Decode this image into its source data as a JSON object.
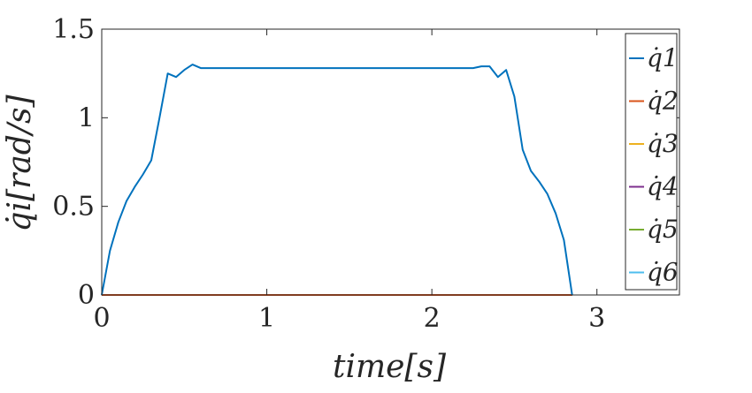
{
  "chart_data": {
    "type": "line",
    "title": "",
    "xlabel": "time[s]",
    "ylabel": "q̇i[rad/s]",
    "xlim": [
      0,
      3.5
    ],
    "ylim": [
      0,
      1.5
    ],
    "xticks": [
      0,
      1,
      2,
      3
    ],
    "yticks": [
      0,
      0.5,
      1,
      1.5
    ],
    "xtick_labels": [
      "0",
      "1",
      "2",
      "3"
    ],
    "ytick_labels": [
      "0",
      "0.5",
      "1",
      "1.5"
    ],
    "grid": false,
    "legend_position": "right",
    "series": [
      {
        "name": "q̇1",
        "color": "#0072BD",
        "x": [
          0,
          0.05,
          0.1,
          0.15,
          0.2,
          0.25,
          0.3,
          0.35,
          0.4,
          0.45,
          0.5,
          0.55,
          0.6,
          1.0,
          1.5,
          2.0,
          2.25,
          2.3,
          2.35,
          2.4,
          2.45,
          2.5,
          2.55,
          2.6,
          2.65,
          2.7,
          2.75,
          2.8,
          2.85
        ],
        "y": [
          0,
          0.25,
          0.41,
          0.53,
          0.61,
          0.68,
          0.76,
          1.0,
          1.25,
          1.23,
          1.27,
          1.3,
          1.28,
          1.28,
          1.28,
          1.28,
          1.28,
          1.29,
          1.29,
          1.23,
          1.27,
          1.12,
          0.82,
          0.7,
          0.64,
          0.57,
          0.46,
          0.31,
          0.0
        ]
      },
      {
        "name": "q̇2",
        "color": "#D95319",
        "x": [
          0,
          2.85
        ],
        "y": [
          0,
          0
        ]
      },
      {
        "name": "q̇3",
        "color": "#EDB120",
        "x": [
          0,
          2.85
        ],
        "y": [
          0,
          0
        ]
      },
      {
        "name": "q̇4",
        "color": "#7E2F8E",
        "x": [
          0,
          2.85
        ],
        "y": [
          0,
          0
        ]
      },
      {
        "name": "q̇5",
        "color": "#77AC30",
        "x": [
          0,
          2.85
        ],
        "y": [
          0,
          0
        ]
      },
      {
        "name": "q̇6",
        "color": "#4DBEEE",
        "x": [
          0,
          2.85
        ],
        "y": [
          0,
          0
        ]
      }
    ]
  }
}
